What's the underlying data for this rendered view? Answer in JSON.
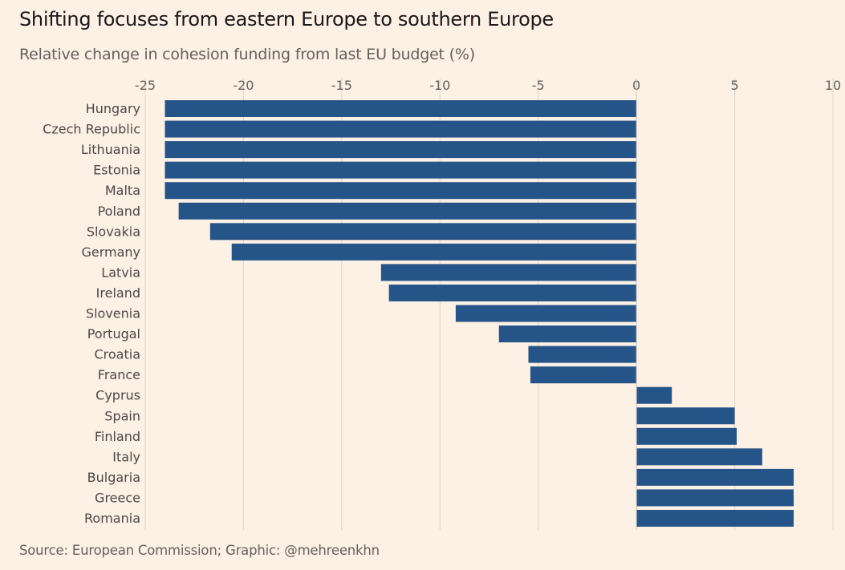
{
  "colors": {
    "background": "#fdf0e5",
    "bar": "#255488",
    "grid": "#dcd6d0",
    "zero": "#c9c2bc"
  },
  "chart_data": {
    "type": "bar",
    "orientation": "horizontal",
    "title": "Shifting focuses from eastern Europe to southern Europe",
    "subtitle": "Relative change in cohesion funding from last EU budget (%)",
    "xlabel": "",
    "ylabel": "",
    "xlim": [
      -25,
      10
    ],
    "xticks": [
      -25,
      -20,
      -15,
      -10,
      -5,
      0,
      5,
      10
    ],
    "xtick_labels": [
      "-25",
      "-20",
      "-15",
      "-10",
      "-5",
      "0",
      "5",
      "10"
    ],
    "grid": true,
    "categories": [
      "Hungary",
      "Czech Republic",
      "Lithuania",
      "Estonia",
      "Malta",
      "Poland",
      "Slovakia",
      "Germany",
      "Latvia",
      "Ireland",
      "Slovenia",
      "Portugal",
      "Croatia",
      "France",
      "Cyprus",
      "Spain",
      "Finland",
      "Italy",
      "Bulgaria",
      "Greece",
      "Romania"
    ],
    "values": [
      -24,
      -24,
      -24,
      -24,
      -24,
      -23.3,
      -21.7,
      -20.6,
      -13.0,
      -12.6,
      -9.2,
      -7.0,
      -5.5,
      -5.4,
      1.8,
      5.0,
      5.1,
      6.4,
      8,
      8,
      8
    ],
    "source": "Source: European Commission; Graphic: @mehreenkhn"
  }
}
